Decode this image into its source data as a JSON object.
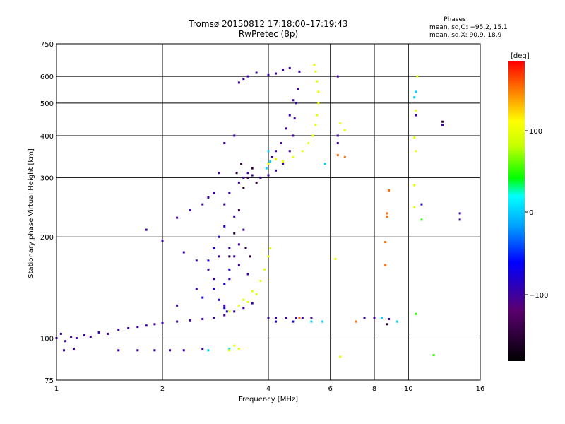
{
  "chart_data": {
    "type": "scatter",
    "title": "Tromsø 20150812 17:18:00–17:19:43",
    "subtitle": "RwPretec (8p)",
    "xlabel": "Frequency [MHz]",
    "ylabel": "Stationary phase Virtual Height [km]",
    "x_scale": "log",
    "y_scale": "log",
    "xlim": [
      1,
      16
    ],
    "ylim": [
      75,
      750
    ],
    "x_ticks": [
      "1",
      "2",
      "4",
      "6",
      "8",
      "10",
      "16"
    ],
    "y_ticks": [
      "750",
      "600",
      "500",
      "400",
      "300",
      "200",
      "100",
      "75"
    ],
    "grid": true,
    "phases": {
      "heading": "Phases",
      "o_line": "mean, sd,O: −95.2, 15.1",
      "x_line": "mean, sd,X:  90.9, 18.9"
    },
    "colorbar": {
      "label": "deg",
      "range": [
        -180,
        180
      ],
      "ticks": [
        "100",
        "0",
        "−100"
      ]
    },
    "series": [
      {
        "phase_deg": -100,
        "points": [
          [
            1.0,
            100
          ],
          [
            1.03,
            103
          ],
          [
            1.06,
            98
          ],
          [
            1.1,
            101
          ],
          [
            1.14,
            100
          ],
          [
            1.2,
            102
          ],
          [
            1.25,
            101
          ],
          [
            1.32,
            104
          ],
          [
            1.4,
            103
          ],
          [
            1.5,
            106
          ],
          [
            1.6,
            107
          ],
          [
            1.7,
            108
          ],
          [
            1.8,
            109
          ],
          [
            1.9,
            110
          ],
          [
            2.0,
            111
          ],
          [
            2.2,
            112
          ],
          [
            2.4,
            113
          ],
          [
            2.6,
            114
          ],
          [
            2.8,
            115
          ],
          [
            3.0,
            117
          ],
          [
            3.2,
            120
          ],
          [
            3.4,
            123
          ],
          [
            3.6,
            127
          ],
          [
            1.05,
            92
          ],
          [
            1.12,
            93
          ],
          [
            1.5,
            92
          ],
          [
            1.7,
            92
          ],
          [
            1.9,
            92
          ],
          [
            2.1,
            92
          ],
          [
            2.3,
            92
          ],
          [
            2.6,
            93
          ],
          [
            3.0,
            125
          ],
          [
            3.1,
            150
          ],
          [
            3.2,
            175
          ],
          [
            3.3,
            190
          ],
          [
            3.4,
            210
          ],
          [
            3.2,
            230
          ],
          [
            3.0,
            250
          ],
          [
            3.1,
            270
          ],
          [
            3.3,
            290
          ],
          [
            3.4,
            300
          ],
          [
            3.5,
            310
          ],
          [
            3.6,
            305
          ],
          [
            3.8,
            300
          ],
          [
            4.0,
            305
          ],
          [
            4.2,
            315
          ],
          [
            4.4,
            330
          ],
          [
            4.6,
            360
          ],
          [
            4.7,
            400
          ],
          [
            4.75,
            450
          ],
          [
            4.8,
            500
          ],
          [
            4.85,
            550
          ],
          [
            4.9,
            620
          ],
          [
            4.0,
            330
          ],
          [
            4.1,
            345
          ],
          [
            4.2,
            360
          ],
          [
            4.35,
            380
          ],
          [
            4.5,
            420
          ],
          [
            4.6,
            460
          ],
          [
            4.7,
            510
          ],
          [
            4.6,
            635
          ],
          [
            4.4,
            628
          ],
          [
            4.2,
            612
          ],
          [
            4.0,
            605
          ],
          [
            3.7,
            615
          ],
          [
            3.5,
            600
          ],
          [
            3.4,
            590
          ],
          [
            3.3,
            575
          ],
          [
            2.2,
            228
          ],
          [
            2.4,
            240
          ],
          [
            2.6,
            250
          ],
          [
            2.7,
            262
          ],
          [
            2.8,
            270
          ],
          [
            1.8,
            210
          ],
          [
            2.0,
            195
          ],
          [
            2.3,
            180
          ],
          [
            2.5,
            170
          ],
          [
            2.7,
            160
          ],
          [
            2.9,
            175
          ],
          [
            3.1,
            185
          ],
          [
            3.3,
            165
          ],
          [
            3.5,
            155
          ],
          [
            2.2,
            125
          ],
          [
            2.5,
            140
          ],
          [
            2.8,
            150
          ],
          [
            3.2,
            400
          ],
          [
            3.0,
            380
          ],
          [
            2.9,
            310
          ],
          [
            4.0,
            115
          ],
          [
            4.2,
            115
          ],
          [
            4.5,
            115
          ],
          [
            4.8,
            115
          ],
          [
            5.0,
            115
          ],
          [
            5.3,
            115
          ],
          [
            7.5,
            115
          ],
          [
            8.0,
            115
          ],
          [
            8.8,
            114
          ],
          [
            6.3,
            600
          ],
          [
            6.3,
            400
          ],
          [
            6.3,
            380
          ],
          [
            10.5,
            460
          ],
          [
            12.5,
            430
          ],
          [
            14.0,
            235
          ],
          [
            14.0,
            225
          ]
        ]
      },
      {
        "phase_deg": -75,
        "points": [
          [
            2.9,
            130
          ],
          [
            3.0,
            145
          ],
          [
            3.1,
            160
          ],
          [
            2.8,
            185
          ],
          [
            2.9,
            200
          ],
          [
            3.0,
            215
          ],
          [
            2.7,
            170
          ],
          [
            2.8,
            140
          ],
          [
            3.05,
            120
          ],
          [
            3.0,
            123
          ],
          [
            2.6,
            132
          ],
          [
            4.2,
            112
          ],
          [
            4.7,
            112
          ],
          [
            10.9,
            250
          ]
        ]
      },
      {
        "phase_deg": -150,
        "points": [
          [
            3.1,
            175
          ],
          [
            3.2,
            205
          ],
          [
            3.3,
            240
          ],
          [
            3.4,
            280
          ],
          [
            3.25,
            310
          ],
          [
            3.35,
            330
          ],
          [
            3.5,
            300
          ],
          [
            3.6,
            320
          ],
          [
            3.7,
            290
          ],
          [
            3.45,
            185
          ],
          [
            3.55,
            175
          ],
          [
            8.7,
            110
          ],
          [
            12.5,
            440
          ]
        ]
      },
      {
        "phase_deg": 0,
        "points": [
          [
            4.0,
            360
          ],
          [
            4.05,
            335
          ],
          [
            3.95,
            320
          ],
          [
            2.7,
            92
          ],
          [
            3.1,
            93
          ],
          [
            5.3,
            112
          ],
          [
            5.7,
            112
          ],
          [
            5.8,
            330
          ],
          [
            10.4,
            520
          ],
          [
            10.5,
            540
          ],
          [
            9.3,
            112
          ],
          [
            8.4,
            115
          ]
        ]
      },
      {
        "phase_deg": 50,
        "points": [
          [
            11.8,
            89
          ],
          [
            10.5,
            118
          ],
          [
            10.9,
            225
          ]
        ]
      },
      {
        "phase_deg": 95,
        "points": [
          [
            3.4,
            130
          ],
          [
            3.6,
            138
          ],
          [
            3.8,
            148
          ],
          [
            3.9,
            160
          ],
          [
            4.0,
            175
          ],
          [
            4.05,
            185
          ],
          [
            3.1,
            120
          ],
          [
            3.3,
            125
          ],
          [
            3.5,
            128
          ],
          [
            3.7,
            135
          ],
          [
            3.2,
            95
          ],
          [
            3.3,
            93
          ],
          [
            3.1,
            92
          ],
          [
            4.4,
            335
          ],
          [
            4.7,
            345
          ],
          [
            5.0,
            360
          ],
          [
            5.2,
            380
          ],
          [
            5.35,
            400
          ],
          [
            5.45,
            430
          ],
          [
            5.5,
            460
          ],
          [
            5.55,
            500
          ],
          [
            5.55,
            540
          ],
          [
            5.5,
            580
          ],
          [
            5.45,
            620
          ],
          [
            5.4,
            650
          ],
          [
            4.2,
            340
          ],
          [
            4.0,
            330
          ],
          [
            6.4,
            88
          ],
          [
            6.4,
            435
          ],
          [
            6.6,
            415
          ],
          [
            10.4,
            395
          ],
          [
            10.5,
            360
          ],
          [
            10.4,
            285
          ],
          [
            10.4,
            245
          ],
          [
            10.6,
            600
          ],
          [
            10.5,
            475
          ],
          [
            6.2,
            172
          ]
        ]
      },
      {
        "phase_deg": 150,
        "points": [
          [
            8.8,
            275
          ],
          [
            8.7,
            235
          ],
          [
            8.7,
            230
          ],
          [
            8.6,
            193
          ],
          [
            8.6,
            165
          ],
          [
            6.6,
            345
          ],
          [
            6.3,
            350
          ],
          [
            7.1,
            112
          ],
          [
            4.9,
            115
          ]
        ]
      }
    ]
  }
}
